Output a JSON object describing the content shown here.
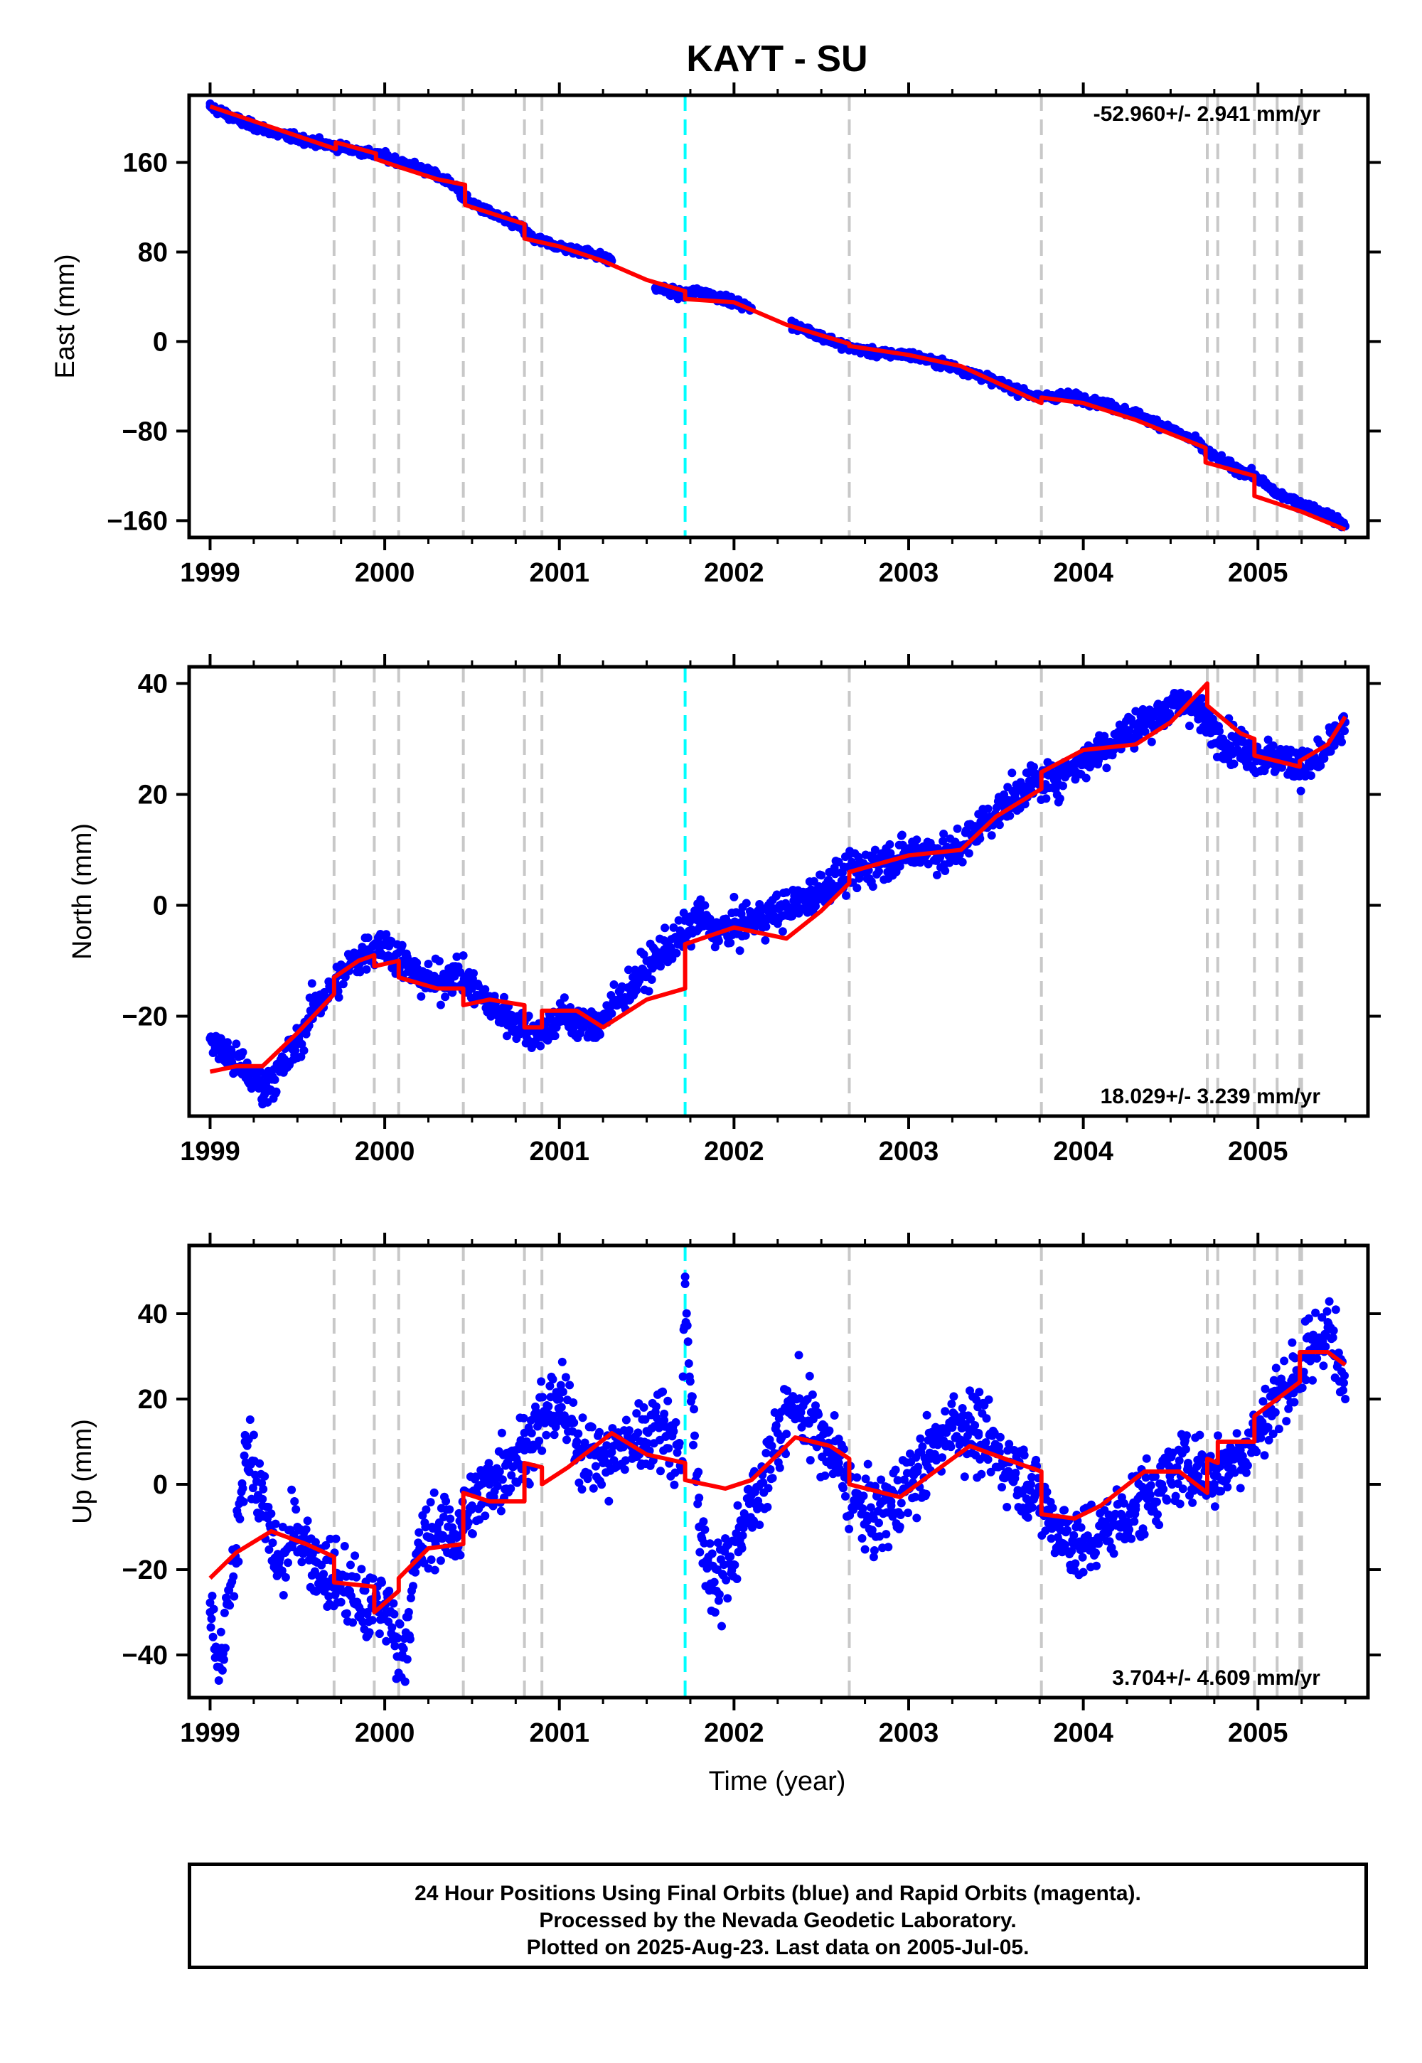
{
  "title": "KAYT - SU",
  "xlabel": "Time (year)",
  "footer": {
    "line1": "24 Hour Positions Using Final Orbits (blue) and Rapid Orbits (magenta).",
    "line2": "Processed by the Nevada Geodetic Laboratory.",
    "line3": "Plotted on 2025-Aug-23. Last data on 2005-Jul-05."
  },
  "colors": {
    "data": "#0000ff",
    "model": "#ff0000",
    "equipment_change": "#c8c8c8",
    "earthquake": "#00ffff",
    "frame": "#000000"
  },
  "chart_data": [
    {
      "type": "scatter",
      "ylabel": "East (mm)",
      "rate_label": "-52.960+/- 2.941 mm/yr",
      "rate_position": "top-right",
      "xlim": [
        1998.88,
        2005.63
      ],
      "ylim": [
        -175,
        220
      ],
      "xticks": [
        1999,
        2000,
        2001,
        2002,
        2003,
        2004,
        2005
      ],
      "yticks": [
        -160,
        -80,
        0,
        80,
        160
      ],
      "series": [
        {
          "role": "data",
          "marker": "point",
          "x": [
            1999.0,
            1999.2,
            1999.4,
            1999.6,
            1999.7,
            1999.8,
            2000.0,
            2000.2,
            2000.4,
            2000.45,
            2000.6,
            2000.78,
            2000.85,
            2001.0,
            2001.2,
            2001.3,
            2001.55,
            2001.7,
            2001.8,
            2001.95,
            2002.1,
            2002.33,
            2002.5,
            2002.65,
            2002.8,
            2003.0,
            2003.2,
            2003.4,
            2003.6,
            2003.75,
            2003.9,
            2004.1,
            2004.3,
            2004.5,
            2004.65,
            2004.7,
            2004.85,
            2004.98,
            2005.1,
            2005.25,
            2005.4,
            2005.5
          ],
          "y": [
            210,
            195,
            185,
            178,
            175,
            172,
            165,
            155,
            140,
            128,
            115,
            102,
            92,
            85,
            78,
            72,
            48,
            42,
            45,
            38,
            30,
            15,
            5,
            -5,
            -10,
            -12,
            -20,
            -30,
            -42,
            -50,
            -48,
            -55,
            -65,
            -78,
            -90,
            -98,
            -112,
            -120,
            -135,
            -145,
            -155,
            -165
          ]
        },
        {
          "role": "model",
          "x": [
            1999.0,
            1999.72,
            1999.72,
            1999.95,
            1999.95,
            2000.1,
            2000.3,
            2000.46,
            2000.46,
            2000.8,
            2000.8,
            2001.0,
            2001.25,
            2001.5,
            2001.72,
            2001.72,
            2002.0,
            2002.3,
            2002.66,
            2002.66,
            2003.0,
            2003.3,
            2003.76,
            2003.76,
            2004.0,
            2004.3,
            2004.7,
            2004.7,
            2004.98,
            2004.98,
            2005.25,
            2005.5
          ],
          "y": [
            210,
            172,
            178,
            168,
            163,
            155,
            145,
            140,
            122,
            105,
            92,
            85,
            72,
            55,
            45,
            38,
            35,
            15,
            -2,
            -4,
            -12,
            -22,
            -55,
            -50,
            -55,
            -70,
            -95,
            -108,
            -120,
            -138,
            -152,
            -168
          ]
        }
      ],
      "equipment_changes": [
        1999.71,
        1999.94,
        2000.08,
        2000.45,
        2000.8,
        2000.9,
        2002.66,
        2003.76,
        2004.71,
        2004.77,
        2004.98,
        2005.11,
        2005.24,
        2005.25
      ],
      "earthquakes": [
        2001.72
      ]
    },
    {
      "type": "scatter",
      "ylabel": "North (mm)",
      "rate_label": "18.029+/- 3.239 mm/yr",
      "rate_position": "bottom-right",
      "xlim": [
        1998.88,
        2005.63
      ],
      "ylim": [
        -38,
        43
      ],
      "xticks": [
        1999,
        2000,
        2001,
        2002,
        2003,
        2004,
        2005
      ],
      "yticks": [
        -20,
        0,
        20,
        40
      ],
      "series": [
        {
          "role": "data",
          "marker": "point",
          "x": [
            1999.0,
            1999.1,
            1999.2,
            1999.3,
            1999.4,
            1999.5,
            1999.6,
            1999.7,
            1999.8,
            1999.9,
            2000.0,
            2000.1,
            2000.2,
            2000.3,
            2000.4,
            2000.5,
            2000.6,
            2000.7,
            2000.8,
            2000.9,
            2001.0,
            2001.1,
            2001.2,
            2001.6,
            2001.7,
            2001.8,
            2001.9,
            2002.35,
            2002.45,
            2002.55,
            2002.7,
            2002.85,
            2003.1,
            2003.25,
            2003.4,
            2003.55,
            2003.7,
            2003.85,
            2004.0,
            2004.2,
            2004.4,
            2004.6,
            2004.7,
            2004.8,
            2005.0,
            2005.15,
            2005.3,
            2005.4,
            2005.5
          ],
          "y": [
            -24,
            -27,
            -30,
            -33,
            -30,
            -25,
            -18,
            -15,
            -11,
            -8,
            -7,
            -10,
            -13,
            -14,
            -12,
            -15,
            -18,
            -20,
            -22,
            -23,
            -20,
            -21,
            -22,
            -8,
            -6,
            -2,
            -5,
            0,
            2,
            4,
            6,
            8,
            10,
            9,
            14,
            18,
            22,
            23,
            26,
            30,
            34,
            37,
            33,
            30,
            27,
            26,
            25,
            28,
            33
          ]
        },
        {
          "role": "model",
          "x": [
            1999.0,
            1999.15,
            1999.3,
            1999.5,
            1999.71,
            1999.71,
            1999.85,
            1999.94,
            1999.94,
            2000.08,
            2000.08,
            2000.3,
            2000.45,
            2000.45,
            2000.6,
            2000.8,
            2000.8,
            2000.9,
            2000.9,
            2001.1,
            2001.25,
            2001.5,
            2001.72,
            2001.72,
            2002.0,
            2002.3,
            2002.5,
            2002.66,
            2002.66,
            2003.0,
            2003.3,
            2003.5,
            2003.76,
            2003.76,
            2004.0,
            2004.3,
            2004.5,
            2004.71,
            2004.71,
            2004.9,
            2004.98,
            2004.98,
            2005.24,
            2005.24,
            2005.4,
            2005.5
          ],
          "y": [
            -30,
            -29,
            -29,
            -23,
            -16,
            -13,
            -10,
            -9,
            -11,
            -10,
            -13,
            -15,
            -15,
            -18,
            -17,
            -18,
            -22,
            -22,
            -19,
            -19,
            -22,
            -17,
            -15,
            -7,
            -4,
            -6,
            -1,
            4,
            6,
            9,
            10,
            16,
            21,
            24,
            28,
            29,
            33,
            40,
            36,
            31,
            30,
            27,
            25,
            26,
            29,
            34
          ]
        }
      ],
      "equipment_changes": [
        1999.71,
        1999.94,
        2000.08,
        2000.45,
        2000.8,
        2000.9,
        2002.66,
        2003.76,
        2004.71,
        2004.77,
        2004.98,
        2005.11,
        2005.24,
        2005.25
      ],
      "earthquakes": [
        2001.72
      ]
    },
    {
      "type": "scatter",
      "ylabel": "Up (mm)",
      "rate_label": "3.704+/- 4.609 mm/yr",
      "rate_position": "bottom-right",
      "xlim": [
        1998.88,
        2005.63
      ],
      "ylim": [
        -50,
        56
      ],
      "xticks": [
        1999,
        2000,
        2001,
        2002,
        2003,
        2004,
        2005
      ],
      "yticks": [
        -40,
        -20,
        0,
        20,
        40
      ],
      "series": [
        {
          "role": "data",
          "marker": "point",
          "x": [
            1999.0,
            1999.05,
            1999.15,
            1999.2,
            1999.3,
            1999.4,
            1999.5,
            1999.6,
            1999.7,
            1999.8,
            1999.9,
            2000.0,
            2000.1,
            2000.2,
            2000.3,
            2000.4,
            2000.5,
            2000.6,
            2000.7,
            2000.8,
            2000.9,
            2001.0,
            2001.1,
            2001.25,
            2001.6,
            2001.7,
            2001.72,
            2001.8,
            2001.9,
            2002.35,
            2002.5,
            2002.6,
            2002.7,
            2002.8,
            2002.9,
            2003.1,
            2003.25,
            2003.4,
            2003.55,
            2003.7,
            2003.85,
            2004.0,
            2004.15,
            2004.3,
            2004.45,
            2004.6,
            2004.75,
            2004.9,
            2005.0,
            2005.1,
            2005.2,
            2005.3,
            2005.4,
            2005.5
          ],
          "y": [
            -30,
            -46,
            -15,
            10,
            -5,
            -20,
            -10,
            -18,
            -22,
            -25,
            -30,
            -28,
            -40,
            -15,
            -10,
            -12,
            -5,
            0,
            5,
            8,
            15,
            20,
            10,
            5,
            15,
            5,
            47,
            -10,
            -25,
            20,
            10,
            5,
            -5,
            -8,
            -5,
            5,
            15,
            12,
            5,
            0,
            -10,
            -15,
            -10,
            -5,
            0,
            5,
            2,
            8,
            12,
            20,
            25,
            30,
            38,
            20
          ],
          "emphasis": []
        },
        {
          "role": "model",
          "x": [
            1999.0,
            1999.15,
            1999.35,
            1999.55,
            1999.71,
            1999.71,
            1999.94,
            1999.94,
            2000.08,
            2000.08,
            2000.25,
            2000.45,
            2000.45,
            2000.6,
            2000.8,
            2000.8,
            2000.9,
            2000.9,
            2001.05,
            2001.3,
            2001.5,
            2001.72,
            2001.72,
            2001.95,
            2002.1,
            2002.35,
            2002.55,
            2002.66,
            2002.66,
            2002.95,
            2003.15,
            2003.35,
            2003.55,
            2003.76,
            2003.76,
            2003.95,
            2004.1,
            2004.35,
            2004.55,
            2004.71,
            2004.71,
            2004.77,
            2004.77,
            2004.98,
            2004.98,
            2005.24,
            2005.24,
            2005.4,
            2005.5
          ],
          "y": [
            -22,
            -16,
            -11,
            -14,
            -17,
            -23,
            -24,
            -30,
            -25,
            -22,
            -15,
            -14,
            -2,
            -4,
            -4,
            5,
            4,
            0,
            4,
            12,
            7,
            5,
            1,
            -1,
            1,
            11,
            9,
            6,
            0,
            -3,
            3,
            9,
            6,
            3,
            -7,
            -8,
            -5,
            3,
            3,
            -2,
            6,
            5,
            10,
            10,
            16,
            24,
            31,
            31,
            28
          ]
        }
      ],
      "equipment_changes": [
        1999.71,
        1999.94,
        2000.08,
        2000.45,
        2000.8,
        2000.9,
        2002.66,
        2003.76,
        2004.71,
        2004.77,
        2004.98,
        2005.11,
        2005.24,
        2005.25
      ],
      "earthquakes": [
        2001.72
      ]
    }
  ]
}
